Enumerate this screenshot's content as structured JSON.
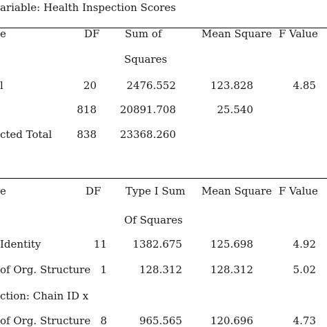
{
  "title": "ariable: Health Inspection Scores",
  "table1": {
    "headers": {
      "source": "e",
      "df": "DF",
      "ss_line1": "Sum of",
      "ss_line2": "Squares",
      "ms": "Mean Square",
      "f": "F Value"
    },
    "rows": [
      {
        "source": "l",
        "df": "20",
        "ss": "2476.552",
        "ms": "123.828",
        "f": "4.85"
      },
      {
        "source": "",
        "df": "818",
        "ss": "20891.708",
        "ms": "25.540",
        "f": ""
      },
      {
        "source": "cted Total",
        "df": "838",
        "ss": "23368.260",
        "ms": "",
        "f": ""
      }
    ]
  },
  "table2": {
    "headers": {
      "source": "e",
      "df": "DF",
      "ss_line1": "Type I Sum",
      "ss_line2": "Of Squares",
      "ms": "Mean Square",
      "f": "F Value"
    },
    "rows": [
      {
        "source": " Identity",
        "df": "11",
        "ss": "1382.675",
        "ms": "125.698",
        "f": "4.92"
      },
      {
        "source": "of Org. Structure",
        "df": "1",
        "ss": "128.312",
        "ms": "128.312",
        "f": "5.02"
      },
      {
        "source": "ction: Chain ID x",
        "df": "",
        "ss": "",
        "ms": "",
        "f": ""
      },
      {
        "source": "of Org. Structure",
        "df": "8",
        "ss": "965.565",
        "ms": "120.696",
        "f": "4.73"
      }
    ]
  }
}
